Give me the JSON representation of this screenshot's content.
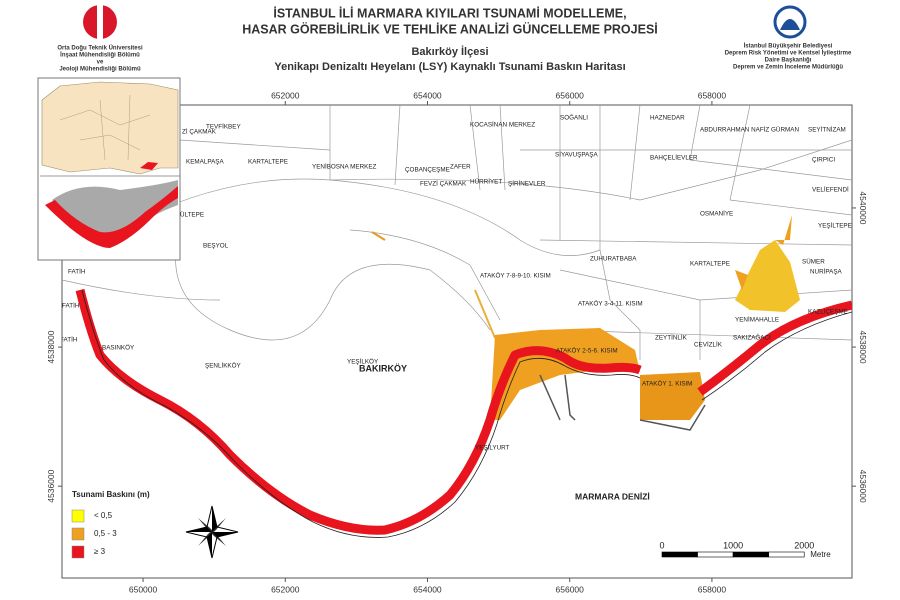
{
  "header": {
    "left_org": [
      "Orta Doğu Teknik Üniversitesi",
      "İnşaat Mühendisliği Bölümü",
      "ve",
      "Jeoloji Mühendisliği Bölümü"
    ],
    "title": [
      "İSTANBUL İLİ MARMARA KIYILARI TSUNAMİ MODELLEME,",
      "HASAR GÖREBİLİRLİK VE TEHLİKE ANALİZİ GÜNCELLEME PROJESİ"
    ],
    "district": "Bakırköy İlçesi",
    "subtitle": "Yenikapı Denizaltı Heyelanı (LSY) Kaynaklı Tsunami Baskın Haritası",
    "right_org": [
      "İstanbul Büyükşehir Belediyesi",
      "Deprem Risk Yönetimi ve Kentsel İyileştirme",
      "Daire Başkanlığı",
      "Deprem ve Zemin İnceleme Müdürlüğü"
    ]
  },
  "map": {
    "xlim": [
      648860,
      659970
    ],
    "ylim": [
      4534680,
      4541480
    ],
    "xticks": [
      650000,
      652000,
      654000,
      656000,
      658000
    ],
    "yticks": [
      4536000,
      4538000,
      4540000
    ],
    "place_labels": [
      "TEVFİKBEY",
      "Zİ ÇAKMAK",
      "KEMALPAŞA",
      "KARTALTEPE",
      "YENİBOSNA MERKEZ",
      "ÇOBANÇEŞME",
      "ZAFER",
      "FEVZİ ÇAKMAK",
      "HÜRRİYET",
      "ŞİRİNEVLER",
      "KOCASİNAN MERKEZ",
      "SOĞANLI",
      "HAZNEDAR",
      "SİYAVUŞPAŞA",
      "BAHÇELİEVLER",
      "ABDURRAHMAN NAFİZ GÜRMAN",
      "SEYİTNİZAM",
      "ÇIRPICI",
      "VELİEFENDİ",
      "OSMANİYE",
      "YEŞİLTEPE",
      "ÜLTEPE",
      "BEŞYOL",
      "ZUHURATBABA",
      "KARTALTEPE",
      "SÜMER",
      "NURİPAŞA",
      "ATAKÖY 7-8-9-10. KISIM",
      "ATAKÖY 3-4-11. KISIM",
      "YENİMAHALLE",
      "KAZLIÇEŞME",
      "ZEYTİNLİK",
      "CEVİZLİK",
      "SAKIZAĞACI",
      "FATİH",
      "FATİH",
      "FATİH",
      "BASINKÖY",
      "ŞENLİKKÖY",
      "YEŞİLKÖY",
      "ATAKÖY 2-5-6. KISIM",
      "ATAKÖY 1. KISIM",
      "YEŞİLYURT"
    ],
    "district_label": "BAKIRKÖY",
    "sea_label": "MARMARA DENİZİ"
  },
  "legend": {
    "title": "Tsunami Baskını (m)",
    "items": [
      {
        "label": "< 0,5",
        "color": "#ffff00"
      },
      {
        "label": "0,5 - 3",
        "color": "#f0a020"
      },
      {
        "label": "≥ 3",
        "color": "#e8141e"
      }
    ]
  },
  "scale_bar": {
    "ticks": [
      0,
      1000,
      2000
    ],
    "unit": "Metre"
  }
}
